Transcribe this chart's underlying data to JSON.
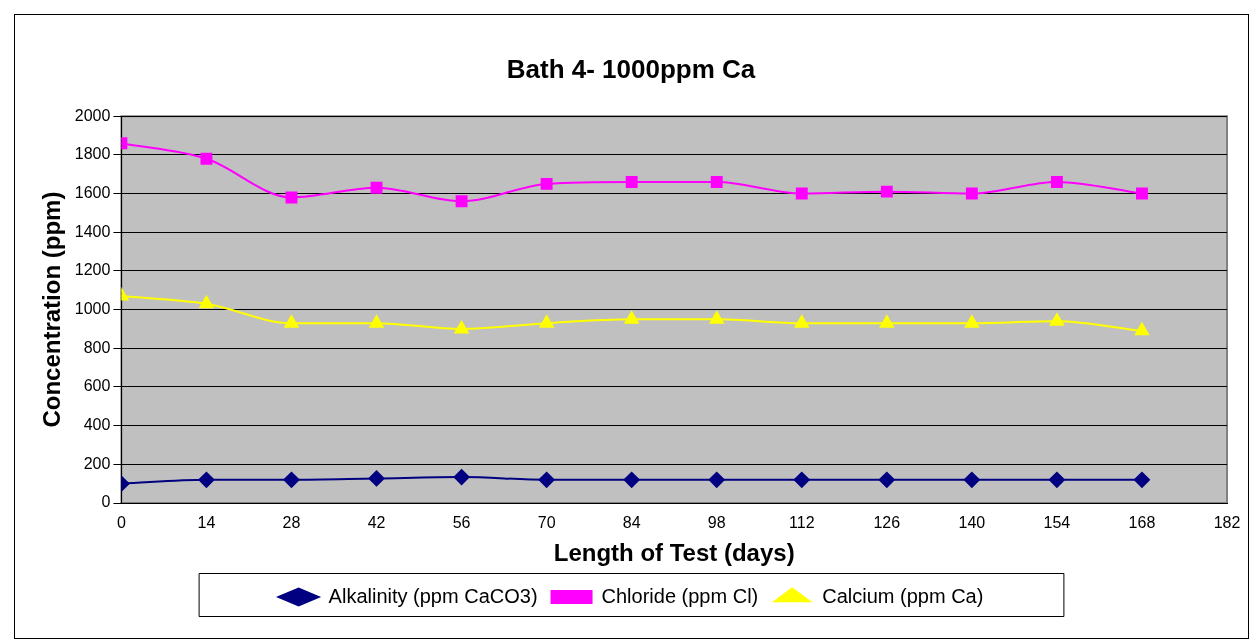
{
  "chart_data": {
    "type": "line",
    "title": "Bath 4- 1000ppm Ca",
    "xlabel": "Length of Test (days)",
    "ylabel": "Concentration (ppm)",
    "x": [
      0,
      14,
      28,
      42,
      56,
      70,
      84,
      98,
      112,
      126,
      140,
      154,
      168
    ],
    "series": [
      {
        "name": "Alkalinity (ppm CaCO3)",
        "color": "#000080",
        "marker": "diamond",
        "values": [
          100,
          120,
          120,
          127,
          134,
          120,
          120,
          120,
          120,
          120,
          120,
          120,
          120
        ]
      },
      {
        "name": "Chloride (ppm Cl)",
        "color": "#ff00ff",
        "marker": "square",
        "values": [
          1860,
          1780,
          1580,
          1630,
          1560,
          1650,
          1660,
          1660,
          1600,
          1610,
          1600,
          1660,
          1600
        ]
      },
      {
        "name": "Calcium (ppm Ca)",
        "color": "#ffff00",
        "marker": "triangle",
        "values": [
          1070,
          1030,
          930,
          930,
          900,
          930,
          950,
          950,
          930,
          930,
          930,
          940,
          890
        ]
      }
    ],
    "xlim": [
      0,
      182
    ],
    "xticks": [
      0,
      14,
      28,
      42,
      56,
      70,
      84,
      98,
      112,
      126,
      140,
      154,
      168,
      182
    ],
    "ylim": [
      0,
      2000
    ],
    "yticks": [
      0,
      200,
      400,
      600,
      800,
      1000,
      1200,
      1400,
      1600,
      1800,
      2000
    ],
    "grid": "y",
    "legend": "bottom"
  }
}
